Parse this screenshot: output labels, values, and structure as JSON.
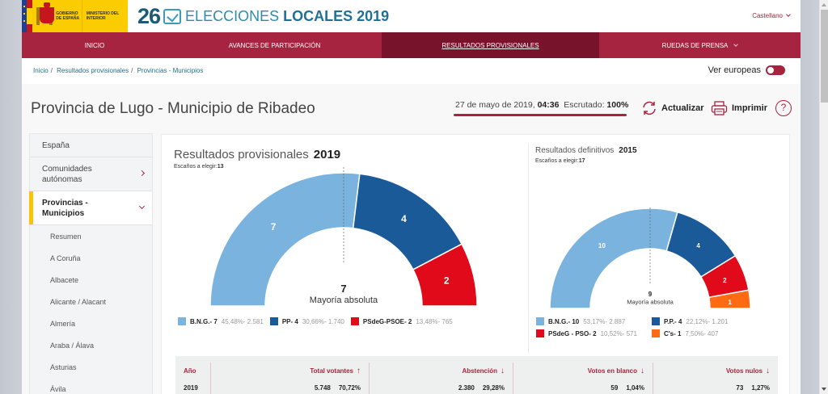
{
  "header": {
    "gov_logo": {
      "line1": "GOBIERNO DE ESPAÑA",
      "line2": "MINISTERIO DEL INTERIOR"
    },
    "brand_number": "26",
    "brand_text_light": "ELECCIONES",
    "brand_text_bold": "LOCALES 2019",
    "language": "Castellano"
  },
  "nav": {
    "items": [
      {
        "label": "INICIO",
        "active": false
      },
      {
        "label": "AVANCES DE PARTICIPACIÓN",
        "active": false
      },
      {
        "label": "RESULTADOS PROVISIONALES",
        "active": true
      },
      {
        "label": "RUEDAS DE PRENSA",
        "active": false,
        "dropdown": true
      }
    ]
  },
  "breadcrumb": [
    "Inicio",
    "Resultados provisionales",
    "Provincias - Municipios"
  ],
  "toggle": {
    "label": "Ver europeas",
    "on": true
  },
  "page": {
    "title": "Provincia de Lugo - Municipio de Ribadeo",
    "date": "27 de mayo de 2019,",
    "time": "04:36",
    "scrutiny_label": "Escrutado:",
    "scrutiny_value": "100%",
    "refresh_label": "Actualizar",
    "print_label": "Imprimir",
    "help_label": "?"
  },
  "sidebar": {
    "items": [
      {
        "label": "España"
      },
      {
        "label": "Comunidades autónomas",
        "arrow": "right"
      },
      {
        "label": "Provincias - Municipios",
        "arrow": "down",
        "active": true
      }
    ],
    "subitems": [
      "Resumen",
      "A Coruña",
      "Albacete",
      "Alicante / Alacant",
      "Almería",
      "Araba / Álava",
      "Asturias",
      "Ávila"
    ]
  },
  "chart_data": [
    {
      "type": "pie",
      "variant": "semicircle-donut",
      "title": "Resultados provisionales",
      "year": "2019",
      "seats_label": "Escaños a elegir:",
      "seats_total": 13,
      "majority_value": 7,
      "majority_label": "Mayoría absoluta",
      "series": [
        {
          "name": "B.N.G.",
          "seats": 7,
          "percent": "45,48%",
          "votes": "2.581",
          "color": "#7ab3dd"
        },
        {
          "name": "PP",
          "seats": 4,
          "percent": "30,66%",
          "votes": "1.740",
          "color": "#1b5a99"
        },
        {
          "name": "PSdeG-PSOE",
          "seats": 2,
          "percent": "13,48%",
          "votes": "765",
          "color": "#e10a1a"
        }
      ]
    },
    {
      "type": "pie",
      "variant": "semicircle-donut",
      "title": "Resultados definitivos",
      "year": "2015",
      "seats_label": "Escaños a elegir:",
      "seats_total": 17,
      "majority_value": 9,
      "majority_label": "Mayoría absoluta",
      "series": [
        {
          "name": "B.N.G.",
          "seats": 10,
          "percent": "53,17%",
          "votes": "2.887",
          "color": "#7ab3dd"
        },
        {
          "name": "P.P.",
          "seats": 4,
          "percent": "22,12%",
          "votes": "1.201",
          "color": "#1b5a99"
        },
        {
          "name": "PSdeG - PSO",
          "seats": 2,
          "percent": "10,52%",
          "votes": "571",
          "color": "#e10a1a"
        },
        {
          "name": "C's",
          "seats": 1,
          "percent": "7,50%",
          "votes": "407",
          "color": "#ff6a13"
        }
      ]
    }
  ],
  "table": {
    "headers": [
      {
        "label": "Año"
      },
      {
        "label": "Total votantes",
        "sort": "↑"
      },
      {
        "label": "Abstención",
        "sort": "↓"
      },
      {
        "label": "Votos en blanco",
        "sort": "↓"
      },
      {
        "label": "Votos nulos",
        "sort": "↓"
      }
    ],
    "rows": [
      {
        "year": "2019",
        "total": "5.748",
        "total_pct": "70,72%",
        "abst": "2.380",
        "abst_pct": "29,28%",
        "blank": "59",
        "blank_pct": "1,04%",
        "null": "73",
        "null_pct": "1,27%"
      }
    ]
  },
  "colors": {
    "accent": "#a6243f",
    "accent_dark": "#77142b",
    "brand": "#1f7094",
    "highlight": "#fbc500"
  }
}
